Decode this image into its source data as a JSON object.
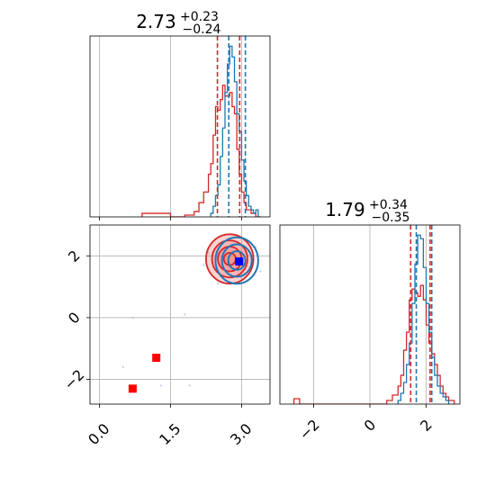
{
  "colors": {
    "red": "#d62728",
    "blue": "#1f77b4",
    "fill_red": "#f08080",
    "marker_red": "#ff0000",
    "marker_blue": "#0000ff",
    "grid": "#b0b0b0"
  },
  "chart_data": [
    {
      "type": "histogram",
      "panel": "top-left",
      "title": {
        "main": "2.73",
        "sup": "+0.23",
        "sub": "−0.24"
      },
      "xlim": [
        -0.2,
        3.6
      ],
      "grid": true,
      "xticks": [
        0.0,
        1.5,
        3.0
      ],
      "series": [
        {
          "name": "",
          "color": "#d62728",
          "bin_edges": [
            0.9,
            1.2,
            1.5,
            1.8,
            2.0,
            2.1,
            2.2,
            2.3,
            2.35,
            2.4,
            2.45,
            2.5,
            2.55,
            2.6,
            2.65,
            2.7,
            2.75,
            2.8,
            2.85,
            2.9,
            2.95,
            3.0,
            3.05,
            3.1,
            3.2,
            3.3,
            3.4
          ],
          "counts": [
            2,
            2,
            0,
            1,
            3,
            8,
            14,
            24,
            30,
            46,
            62,
            60,
            66,
            74,
            68,
            68,
            70,
            62,
            58,
            38,
            24,
            14,
            8,
            4,
            2,
            0
          ]
        },
        {
          "name": "",
          "color": "#1f77b4",
          "bin_edges": [
            2.35,
            2.4,
            2.45,
            2.5,
            2.55,
            2.6,
            2.65,
            2.7,
            2.75,
            2.8,
            2.85,
            2.9,
            2.95,
            3.0,
            3.05,
            3.1,
            3.15,
            3.2,
            3.25,
            3.3,
            3.35,
            3.4
          ],
          "counts": [
            2,
            6,
            12,
            18,
            34,
            50,
            70,
            86,
            96,
            90,
            76,
            58,
            48,
            32,
            20,
            12,
            6,
            4,
            2,
            4,
            0
          ]
        }
      ],
      "quantile_lines": [
        {
          "x": 2.49,
          "color": "#d62728"
        },
        {
          "x": 2.73,
          "color": "#1f77b4"
        },
        {
          "x": 2.96,
          "color": "#d62728"
        },
        {
          "x": 3.08,
          "color": "#1f77b4"
        }
      ]
    },
    {
      "type": "contour-scatter",
      "panel": "bottom-left",
      "xlim": [
        -0.2,
        3.6
      ],
      "ylim": [
        -2.8,
        3.0
      ],
      "grid": true,
      "xticks": [
        0.0,
        1.5,
        3.0
      ],
      "xtick_labels": [
        "0.0",
        "1.5",
        "3.0"
      ],
      "yticks": [
        -2,
        0,
        2
      ],
      "ytick_labels": [
        "−2",
        "0",
        "2"
      ],
      "contours": [
        {
          "color": "#d62728",
          "center": [
            2.75,
            1.9
          ],
          "radius": [
            0.5,
            0.8
          ],
          "levels": [
            1.0,
            0.75,
            0.5,
            0.25
          ]
        },
        {
          "color": "#1f77b4",
          "center": [
            2.9,
            1.85
          ],
          "radius": [
            0.45,
            0.75
          ],
          "levels": [
            1.0,
            0.7,
            0.4
          ]
        }
      ],
      "markers": [
        {
          "x": 1.2,
          "y": -1.3,
          "color": "#ff0000"
        },
        {
          "x": 0.7,
          "y": -2.3,
          "color": "#ff0000"
        },
        {
          "x": 2.95,
          "y": 1.82,
          "color": "#0000ff"
        }
      ],
      "scatter_points": [
        [
          0.5,
          -1.6
        ],
        [
          1.3,
          -2.2
        ],
        [
          1.9,
          -2.2
        ],
        [
          0.7,
          0.0
        ],
        [
          1.8,
          0.1
        ],
        [
          2.2,
          1.7
        ],
        [
          2.3,
          2.1
        ],
        [
          3.3,
          2.3
        ],
        [
          3.4,
          1.5
        ],
        [
          2.5,
          1.1
        ]
      ]
    },
    {
      "type": "histogram",
      "panel": "bottom-right",
      "title": {
        "main": "1.79",
        "sup": "+0.34",
        "sub": "−0.35"
      },
      "xlim": [
        -3.2,
        3.2
      ],
      "grid": true,
      "xticks": [
        -2,
        0,
        2
      ],
      "xtick_labels": [
        "−2",
        "0",
        "2"
      ],
      "series": [
        {
          "name": "",
          "color": "#d62728",
          "bin_edges": [
            -2.7,
            -2.5,
            -1.0,
            0.6,
            0.8,
            1.0,
            1.1,
            1.2,
            1.3,
            1.4,
            1.5,
            1.6,
            1.7,
            1.8,
            1.9,
            2.0,
            2.1,
            2.2,
            2.3,
            2.4,
            2.5,
            2.6,
            2.7,
            2.8,
            3.0
          ],
          "counts": [
            3,
            0,
            0,
            2,
            5,
            10,
            16,
            30,
            40,
            58,
            64,
            62,
            60,
            66,
            58,
            44,
            34,
            28,
            22,
            16,
            10,
            6,
            4,
            2
          ]
        },
        {
          "name": "",
          "color": "#1f77b4",
          "bin_edges": [
            1.0,
            1.1,
            1.2,
            1.3,
            1.4,
            1.5,
            1.6,
            1.7,
            1.8,
            1.9,
            2.0,
            2.1,
            2.2,
            2.3,
            2.4,
            2.5,
            2.6,
            2.7,
            2.8
          ],
          "counts": [
            2,
            6,
            12,
            22,
            34,
            56,
            78,
            94,
            92,
            76,
            56,
            40,
            26,
            16,
            10,
            6,
            4,
            2
          ]
        }
      ],
      "quantile_lines": [
        {
          "x": 1.45,
          "color": "#d62728"
        },
        {
          "x": 1.65,
          "color": "#1f77b4"
        },
        {
          "x": 2.14,
          "color": "#d62728"
        },
        {
          "x": 2.2,
          "color": "#1f77b4"
        }
      ]
    }
  ]
}
